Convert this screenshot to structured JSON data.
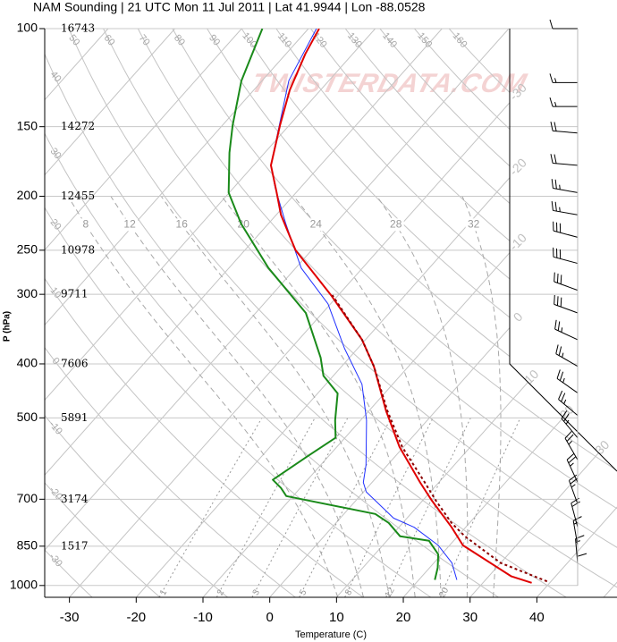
{
  "chart_data": {
    "type": "skewt",
    "title": "NAM Sounding | 21 UTC Mon 11 Jul 2011 | Lat 41.9944 | Lon -88.0528",
    "xlabel": "Temperature (C)",
    "ylabel": "P (hPa)",
    "watermark": "TWISTERDATA.COM",
    "log_y": true,
    "xlim": [
      -33.7,
      52
    ],
    "ylim": [
      1050,
      100
    ],
    "xticks": [
      -30,
      -20,
      -10,
      0,
      10,
      20,
      30,
      40
    ],
    "yticks": [
      100,
      150,
      200,
      250,
      300,
      400,
      500,
      700,
      850,
      1000
    ],
    "height_labels": [
      16743,
      14272,
      12455,
      10978,
      9711,
      7606,
      5891,
      3174,
      1517,
      null
    ],
    "isotherms": {
      "values": [
        -110,
        -100,
        -90,
        -80,
        -70,
        -60,
        -50,
        -40,
        -30,
        -20,
        -10,
        0,
        10,
        20,
        30,
        40,
        50
      ],
      "labels": [
        -30,
        -20,
        -10,
        0,
        10,
        20,
        30
      ]
    },
    "dry_adiabats": {
      "values": [
        -30,
        -20,
        -10,
        0,
        10,
        20,
        30,
        40,
        50,
        60,
        70,
        80,
        90,
        100,
        110,
        120,
        130,
        140,
        150,
        160
      ]
    },
    "moist_adiabats": {
      "values": [
        8,
        12,
        16,
        20,
        24,
        28,
        32
      ]
    },
    "mixing_ratios": {
      "values": [
        1,
        2,
        3,
        5,
        8,
        12,
        20
      ]
    },
    "series": [
      {
        "color": "#1a8a1a",
        "style": "solid",
        "pressure": [
          977,
          929,
          879,
          831,
          816,
          772,
          744,
          691,
          668,
          646,
          585,
          543,
          505,
          452,
          420,
          390,
          324,
          269,
          224,
          197,
          167,
          149,
          124,
          100
        ],
        "temperature": [
          22.4,
          21.2,
          19.5,
          16.3,
          11.4,
          7.9,
          4.7,
          -11.0,
          -12.9,
          -15.2,
          -13.1,
          -11.4,
          -13.8,
          -17.0,
          -21.5,
          -24.3,
          -32.5,
          -44.1,
          -54.1,
          -60.1,
          -65.3,
          -68.5,
          -73.1,
          -76.9
        ]
      },
      {
        "color": "#2030ff",
        "style": "thin",
        "pressure": [
          977,
          911,
          847,
          786,
          757,
          679,
          653,
          608,
          505,
          435,
          375,
          312,
          269,
          224,
          193,
          176,
          149,
          124,
          100
        ],
        "temperature": [
          25.7,
          22.7,
          18.3,
          12.3,
          8.0,
          0.4,
          -1.3,
          -3.2,
          -9.1,
          -14.6,
          -22.0,
          -30.4,
          -39.2,
          -47.4,
          -53.8,
          -57.4,
          -61.5,
          -66.0,
          -68.8
        ]
      },
      {
        "color": "#e00000",
        "style": "solid",
        "pressure": [
          989,
          963,
          847,
          786,
          704,
          653,
          564,
          486,
          404,
          362,
          301,
          250,
          216,
          197,
          176,
          149,
          129,
          111,
          100
        ],
        "temperature": [
          37.3,
          33.4,
          22.0,
          17.9,
          11.4,
          7.2,
          -0.6,
          -7.4,
          -15.2,
          -20.5,
          -31.1,
          -42.4,
          -49.3,
          -52.9,
          -57.4,
          -61.4,
          -64.6,
          -67.1,
          -68.4
        ]
      },
      {
        "color": "#8b0000",
        "style": "dotted",
        "pressure": [
          983,
          911,
          816,
          772,
          704,
          653,
          564,
          486,
          404,
          362,
          301
        ],
        "temperature": [
          39.4,
          30.0,
          21.1,
          17.3,
          12.0,
          7.9,
          -0.2,
          -7.2,
          -15.2,
          -20.5,
          -30.9
        ]
      }
    ],
    "winds": {
      "pressure": [
        100,
        125,
        138,
        154,
        176,
        197,
        216,
        237,
        264,
        295,
        324,
        362,
        404,
        451,
        495,
        543,
        595,
        653,
        714,
        786,
        847,
        914,
        983
      ],
      "speed": [
        10,
        15,
        15,
        20,
        20,
        25,
        25,
        30,
        30,
        30,
        30,
        25,
        25,
        25,
        25,
        25,
        25,
        25,
        25,
        20,
        15,
        15,
        10
      ],
      "direction": [
        270,
        270,
        270,
        275,
        275,
        280,
        280,
        285,
        285,
        290,
        290,
        295,
        300,
        305,
        310,
        320,
        330,
        335,
        340,
        345,
        350,
        355,
        360
      ]
    }
  }
}
